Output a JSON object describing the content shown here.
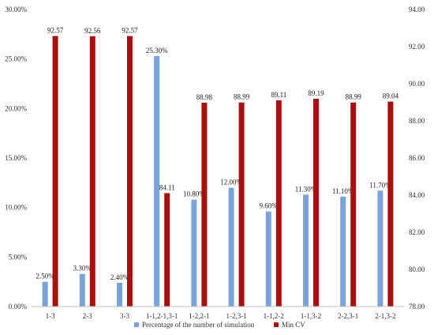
{
  "chart_data": {
    "type": "bar",
    "categories": [
      "1-3",
      "2-3",
      "3-3",
      "1-1,2-1,3-1",
      "1-2,2-1",
      "1-2,3-1",
      "1-1,2-2",
      "1-1,3-2",
      "2-2,3-1",
      "2-1,3-2"
    ],
    "series": [
      {
        "name": "Percentage of the number of simulation",
        "axis": "left",
        "color": "#7aa3da",
        "values": [
          2.5,
          3.3,
          2.4,
          25.3,
          10.8,
          12.0,
          9.6,
          11.3,
          11.1,
          11.7
        ],
        "labels": [
          "2.50%",
          "3.30%",
          "2.40%",
          "25.30%",
          "10.80%",
          "12.00%",
          "9.60%",
          "11.30%",
          "11.10%",
          "11.70%"
        ]
      },
      {
        "name": "Min CV",
        "axis": "right",
        "color": "#a81010",
        "values": [
          92.57,
          92.56,
          92.57,
          84.11,
          88.98,
          88.99,
          89.11,
          89.19,
          88.99,
          89.04
        ],
        "labels": [
          "92.57",
          "92.56",
          "92.57",
          "84.11",
          "88.98",
          "88.99",
          "89.11",
          "89.19",
          "88.99",
          "89.04"
        ]
      }
    ],
    "y_left": {
      "min": 0,
      "max": 30,
      "ticks": [
        0,
        5,
        10,
        15,
        20,
        25,
        30
      ],
      "tick_labels": [
        "0.00%",
        "5.00%",
        "10.00%",
        "15.00%",
        "20.00%",
        "25.00%",
        "30.00%"
      ]
    },
    "y_right": {
      "min": 78,
      "max": 94,
      "ticks": [
        78,
        80,
        82,
        84,
        86,
        88,
        90,
        92,
        94
      ],
      "tick_labels": [
        "78.00",
        "80.00",
        "82.00",
        "84.00",
        "86.00",
        "88.00",
        "90.00",
        "92.00",
        "94.00"
      ]
    },
    "grid": false,
    "legend": "bottom"
  }
}
